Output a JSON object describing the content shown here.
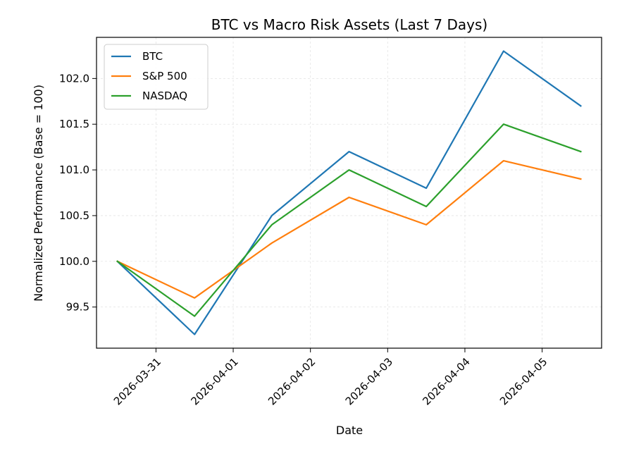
{
  "chart_data": {
    "type": "line",
    "title": "BTC vs Macro Risk Assets (Last 7 Days)",
    "xlabel": "Date",
    "ylabel": "Normalized Performance (Base = 100)",
    "x": [
      "2026-03-30 12:00",
      "2026-03-31 12:00",
      "2026-04-01 12:00",
      "2026-04-02 12:00",
      "2026-04-03 12:00",
      "2026-04-04 12:00",
      "2026-04-05 12:00"
    ],
    "x_ticks": [
      "2026-03-31",
      "2026-04-01",
      "2026-04-02",
      "2026-04-03",
      "2026-04-04",
      "2026-04-05"
    ],
    "y_ticks": [
      "99.5",
      "100.0",
      "100.5",
      "101.0",
      "101.5",
      "102.0"
    ],
    "ylim": [
      99.05,
      102.45
    ],
    "grid": true,
    "legend_position": "upper-left",
    "series": [
      {
        "name": "BTC",
        "color": "#1f77b4",
        "values": [
          100.0,
          99.2,
          100.5,
          101.2,
          100.8,
          102.3,
          101.7
        ]
      },
      {
        "name": "S&P 500",
        "color": "#ff7f0e",
        "values": [
          100.0,
          99.6,
          100.2,
          100.7,
          100.4,
          101.1,
          100.9
        ]
      },
      {
        "name": "NASDAQ",
        "color": "#2ca02c",
        "values": [
          100.0,
          99.4,
          100.4,
          101.0,
          100.6,
          101.5,
          101.2
        ]
      }
    ]
  }
}
